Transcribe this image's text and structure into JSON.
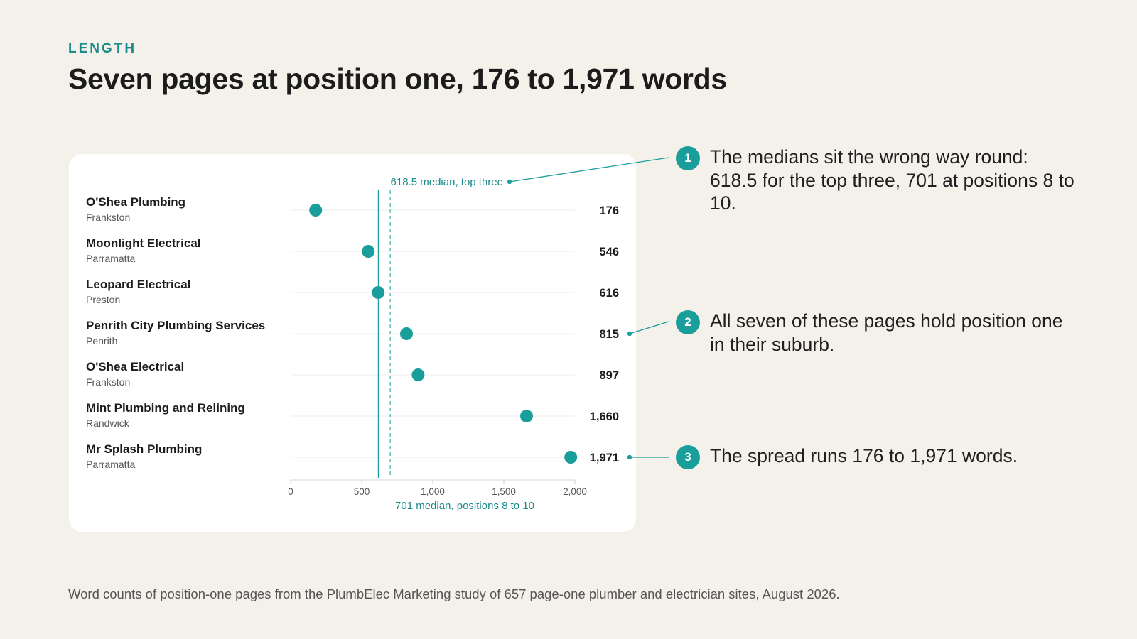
{
  "header": {
    "eyebrow": "LENGTH",
    "title": "Seven pages at position one, 176 to 1,971 words"
  },
  "chart_data": {
    "type": "scatter",
    "x_axis": {
      "ticks": [
        0,
        500,
        1000,
        1500,
        2000
      ],
      "tick_labels": [
        "0",
        "500",
        "1,000",
        "1,500",
        "2,000"
      ],
      "range": [
        0,
        2100
      ],
      "label": ""
    },
    "grid": true,
    "rows": [
      {
        "name": "O'Shea Plumbing",
        "suburb": "Frankston",
        "value": 176,
        "label": "176"
      },
      {
        "name": "Moonlight Electrical",
        "suburb": "Parramatta",
        "value": 546,
        "label": "546"
      },
      {
        "name": "Leopard Electrical",
        "suburb": "Preston",
        "value": 616,
        "label": "616"
      },
      {
        "name": "Penrith City Plumbing Services",
        "suburb": "Penrith",
        "value": 815,
        "label": "815"
      },
      {
        "name": "O'Shea Electrical",
        "suburb": "Frankston",
        "value": 897,
        "label": "897"
      },
      {
        "name": "Mint Plumbing and Relining",
        "suburb": "Randwick",
        "value": 1660,
        "label": "1,660"
      },
      {
        "name": "Mr Splash Plumbing",
        "suburb": "Parramatta",
        "value": 1971,
        "label": "1,971"
      }
    ],
    "reference_lines": [
      {
        "value": 618.5,
        "label": "618.5 median, top three",
        "style": "solid",
        "label_position": "top"
      },
      {
        "value": 701,
        "label": "701 median, positions 8 to 10",
        "style": "dashed",
        "label_position": "bottom"
      }
    ]
  },
  "callouts": [
    {
      "number": "1",
      "text": "The medians sit the wrong way round: 618.5 for the top three, 701 at positions 8 to 10."
    },
    {
      "number": "2",
      "text": "All seven of these pages hold position one in their suburb."
    },
    {
      "number": "3",
      "text": "The spread runs 176 to 1,971 words."
    }
  ],
  "source": "Word counts of position-one pages from the PlumbElec Marketing study of 657 page-one plumber and electrician sites, August 2026.",
  "colors": {
    "accent": "#1a9e9b",
    "accent_text": "#1a8a8a",
    "dashed_line": "#6cc6bf",
    "background": "#f4f1ea",
    "card": "#ffffff"
  }
}
